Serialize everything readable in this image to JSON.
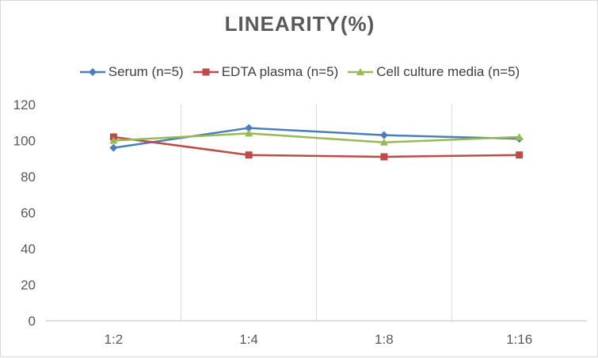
{
  "chart_data": {
    "type": "line",
    "title": "LINEARITY(%)",
    "xlabel": "",
    "ylabel": "",
    "categories": [
      "1:2",
      "1:4",
      "1:8",
      "1:16"
    ],
    "ylim": [
      0,
      120
    ],
    "yticks": [
      0,
      20,
      40,
      60,
      80,
      100,
      120
    ],
    "grid": "vertical",
    "legend": "top",
    "series": [
      {
        "name": "Serum (n=5)",
        "values": [
          96,
          107,
          103,
          101
        ],
        "color": "#4a7ebb",
        "marker": "diamond"
      },
      {
        "name": "EDTA plasma (n=5)",
        "values": [
          102,
          92,
          91,
          92
        ],
        "color": "#be4b48",
        "marker": "square"
      },
      {
        "name": "Cell culture media (n=5)",
        "values": [
          100,
          104,
          99,
          102
        ],
        "color": "#98b954",
        "marker": "triangle"
      }
    ]
  }
}
